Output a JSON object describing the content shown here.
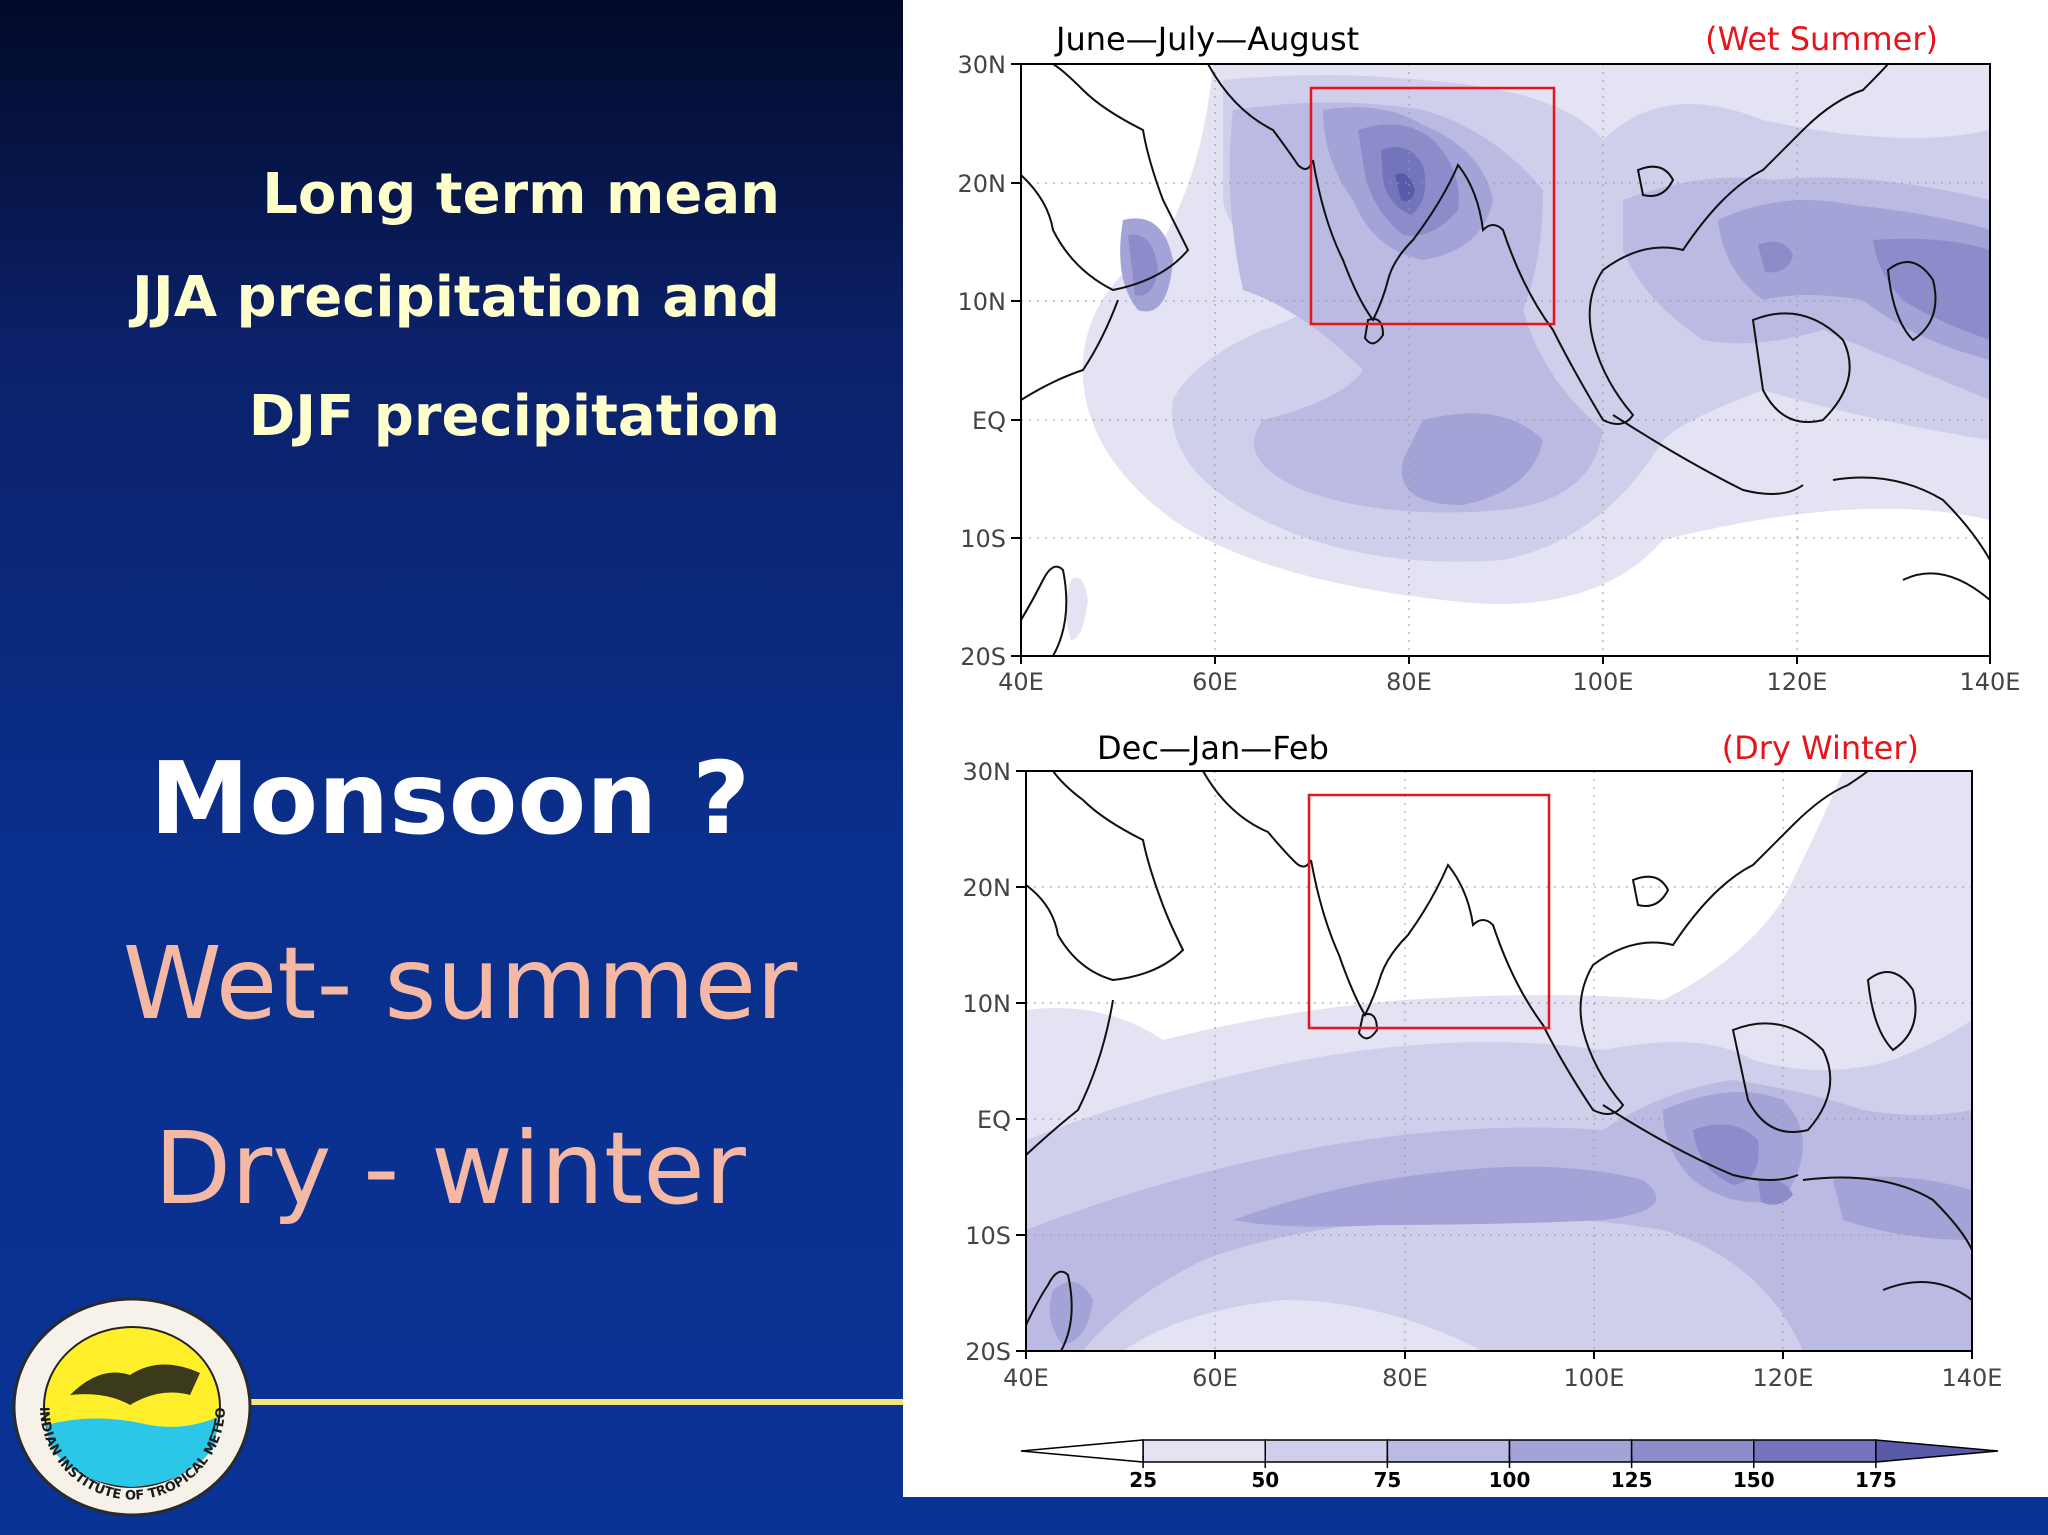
{
  "slide": {
    "heading_line1": "Long term mean",
    "heading_line2": "JJA precipitation and",
    "heading_line3": "DJF precipitation",
    "question": "Monsoon ?",
    "wet": "Wet- summer",
    "dry": "Dry - winter",
    "logo_text": "INDIAN INSTITUTE OF TROPICAL METEOROLOGY PUNE",
    "colors": {
      "heading": "#ffffcc",
      "question": "#ffffff",
      "wet_dry": "#f4b8a4",
      "box": "#e8141c",
      "footer_line": "#f3e67a"
    }
  },
  "maps": [
    {
      "id": "jja",
      "title": "June—July—August",
      "season_tag": "(Wet Summer)",
      "lat_ticks": [
        "30N",
        "20N",
        "10N",
        "EQ",
        "10S",
        "20S"
      ],
      "lon_ticks": [
        "40E",
        "60E",
        "80E",
        "100E",
        "120E",
        "140E"
      ],
      "box_region": {
        "lon": [
          70,
          95
        ],
        "lat": [
          8,
          28
        ]
      }
    },
    {
      "id": "djf",
      "title": "Dec—Jan—Feb",
      "season_tag": "(Dry Winter)",
      "lat_ticks": [
        "30N",
        "20N",
        "10N",
        "EQ",
        "10S",
        "20S"
      ],
      "lon_ticks": [
        "40E",
        "60E",
        "80E",
        "100E",
        "120E",
        "140E"
      ],
      "box_region": {
        "lon": [
          70,
          95
        ],
        "lat": [
          8,
          28
        ]
      }
    }
  ],
  "colorbar": {
    "labels": [
      "25",
      "50",
      "75",
      "100",
      "125",
      "150",
      "175"
    ],
    "colors": [
      "#ffffff",
      "#e3e3f4",
      "#cfcfec",
      "#babae2",
      "#a3a3d7",
      "#8c8cca",
      "#7474bc",
      "#5a5aab"
    ]
  }
}
